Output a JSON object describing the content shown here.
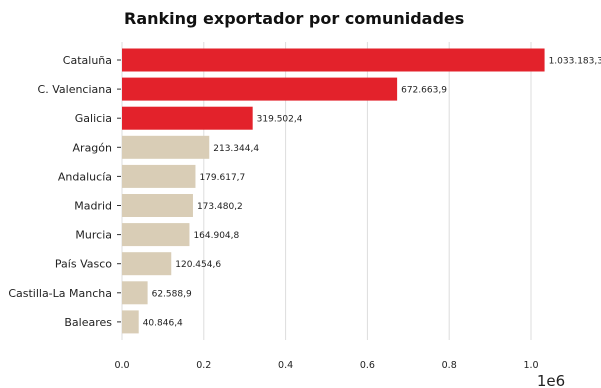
{
  "chart_data": {
    "type": "bar",
    "orientation": "horizontal",
    "title": "Ranking exportador por comunidades",
    "categories": [
      "Cataluña",
      "C. Valenciana",
      "Galicia",
      "Aragón",
      "Andalucía",
      "Madrid",
      "Murcia",
      "País Vasco",
      "Castilla-La Mancha",
      "Baleares"
    ],
    "values": [
      1033183.3,
      672663.9,
      319502.4,
      213344.4,
      179617.7,
      173480.2,
      164904.8,
      120454.6,
      62588.9,
      40846.4
    ],
    "value_labels": [
      "1.033.183,3",
      "672.663,9",
      "319.502,4",
      "213.344,4",
      "179.617,7",
      "173.480,2",
      "164.904,8",
      "120.454,6",
      "62.588,9",
      "40.846,4"
    ],
    "highlight_count": 3,
    "xlim": [
      0,
      1050000
    ],
    "xticks": [
      0,
      200000,
      400000,
      600000,
      800000,
      1000000
    ],
    "xtick_labels": [
      "0.0",
      "0.2",
      "0.4",
      "0.6",
      "0.8",
      "1.0"
    ],
    "x_offset_label": "1e6",
    "xlabel": "",
    "ylabel": "",
    "grid": "vertical",
    "colors": {
      "highlight": "#e3222b",
      "normal": "#d9cdb6",
      "grid": "#dddddd",
      "text": "#222222"
    }
  }
}
